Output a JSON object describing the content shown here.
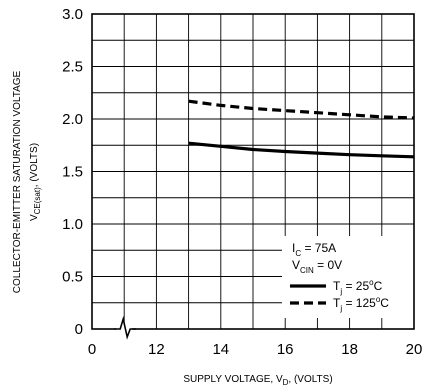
{
  "chart_data": {
    "type": "line",
    "xlabel": {
      "prefix": "SUPPLY VOLTAGE, V",
      "sub": "D",
      "suffix": ", (VOLTS)"
    },
    "ylabel": {
      "line1": "COLLECTOR-EMITTER SATURATION VOLTAGE",
      "line2_prefix": "V",
      "line2_sub": "CE(sat)",
      "line2_suffix": ", (VOLTS)"
    },
    "xlim": [
      10,
      20
    ],
    "ylim": [
      0,
      3.0
    ],
    "x_axis_break": true,
    "x_tick_labels": [
      "0",
      "12",
      "14",
      "16",
      "18",
      "20"
    ],
    "y_tick_labels": [
      "0",
      "0.5",
      "1.0",
      "1.5",
      "2.0",
      "2.5",
      "3.0"
    ],
    "grid": true,
    "legend": {
      "placement": "bottom-right",
      "conditions": [
        {
          "prefix": "I",
          "sub": "C",
          "suffix": " = 75A"
        },
        {
          "prefix": "V",
          "sub": "CIN",
          "suffix": " = 0V"
        }
      ],
      "entries": [
        {
          "prefix": "T",
          "sub": "j",
          "middle": " = 25",
          "sup": "o",
          "suffix": "C",
          "style": "solid"
        },
        {
          "prefix": "T",
          "sub": "j",
          "middle": " = 125",
          "sup": "o",
          "suffix": "C",
          "style": "dashed"
        }
      ]
    },
    "series": [
      {
        "style": "solid",
        "color": "#000000",
        "x": [
          13,
          14,
          15,
          16,
          17,
          18,
          19,
          20
        ],
        "y": [
          1.77,
          1.74,
          1.71,
          1.69,
          1.675,
          1.66,
          1.65,
          1.64
        ]
      },
      {
        "style": "dashed",
        "color": "#000000",
        "x": [
          13,
          14,
          15,
          16,
          17,
          18,
          19,
          20
        ],
        "y": [
          2.17,
          2.13,
          2.1,
          2.08,
          2.06,
          2.04,
          2.02,
          2.01
        ]
      }
    ]
  }
}
